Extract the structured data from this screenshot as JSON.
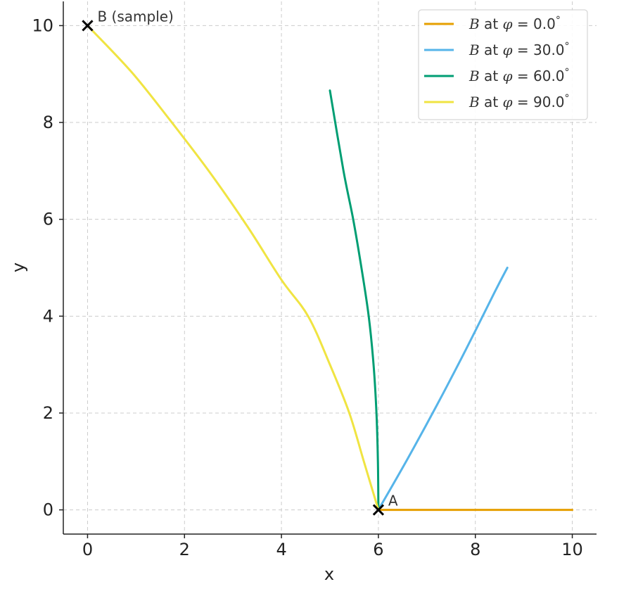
{
  "chart_data": {
    "type": "line",
    "xlabel": "x",
    "ylabel": "y",
    "xlim": [
      -0.5,
      10.5
    ],
    "ylim": [
      -0.5,
      10.5
    ],
    "xticks": [
      "0",
      "2",
      "4",
      "6",
      "8",
      "10"
    ],
    "yticks": [
      "0",
      "2",
      "4",
      "6",
      "8",
      "10"
    ],
    "grid": true,
    "legend_position": "top-right",
    "series": [
      {
        "name": "B at φ = 0.0°",
        "legend_parts": [
          "B",
          " at ",
          "φ",
          " = 0.0",
          "°"
        ],
        "color": "#E69F00",
        "x": [
          6,
          10
        ],
        "y": [
          0,
          0
        ]
      },
      {
        "name": "B at φ = 30.0°",
        "legend_parts": [
          "B",
          " at ",
          "φ",
          " = 30.0",
          "°"
        ],
        "color": "#56B4E9",
        "x": [
          6,
          6.6,
          7.2,
          7.8,
          8.4,
          8.66
        ],
        "y": [
          0,
          1.05,
          2.15,
          3.3,
          4.5,
          5.0
        ]
      },
      {
        "name": "B at φ = 60.0°",
        "legend_parts": [
          "B",
          " at ",
          "φ",
          " = 60.0",
          "°"
        ],
        "color": "#009E73",
        "x": [
          6,
          5.99,
          5.96,
          5.9,
          5.8,
          5.65,
          5.48,
          5.28,
          5.0
        ],
        "y": [
          0,
          1.0,
          2.0,
          3.0,
          4.0,
          5.0,
          6.0,
          7.0,
          8.66
        ]
      },
      {
        "name": "B at φ = 90.0°",
        "legend_parts": [
          "B",
          " at ",
          "φ",
          " = 90.0",
          "°"
        ],
        "color": "#F0E442",
        "x": [
          6,
          5.7,
          5.4,
          5.0,
          4.55,
          4.0,
          3.3,
          2.5,
          1.7,
          0.9,
          0
        ],
        "y": [
          0,
          1.0,
          2.0,
          3.0,
          4.0,
          4.75,
          5.85,
          7.0,
          8.05,
          9.05,
          10.0
        ]
      }
    ],
    "annotations": [
      {
        "label": "B (sample)",
        "x": 0,
        "y": 10
      },
      {
        "label": "A",
        "x": 6,
        "y": 0
      }
    ]
  }
}
